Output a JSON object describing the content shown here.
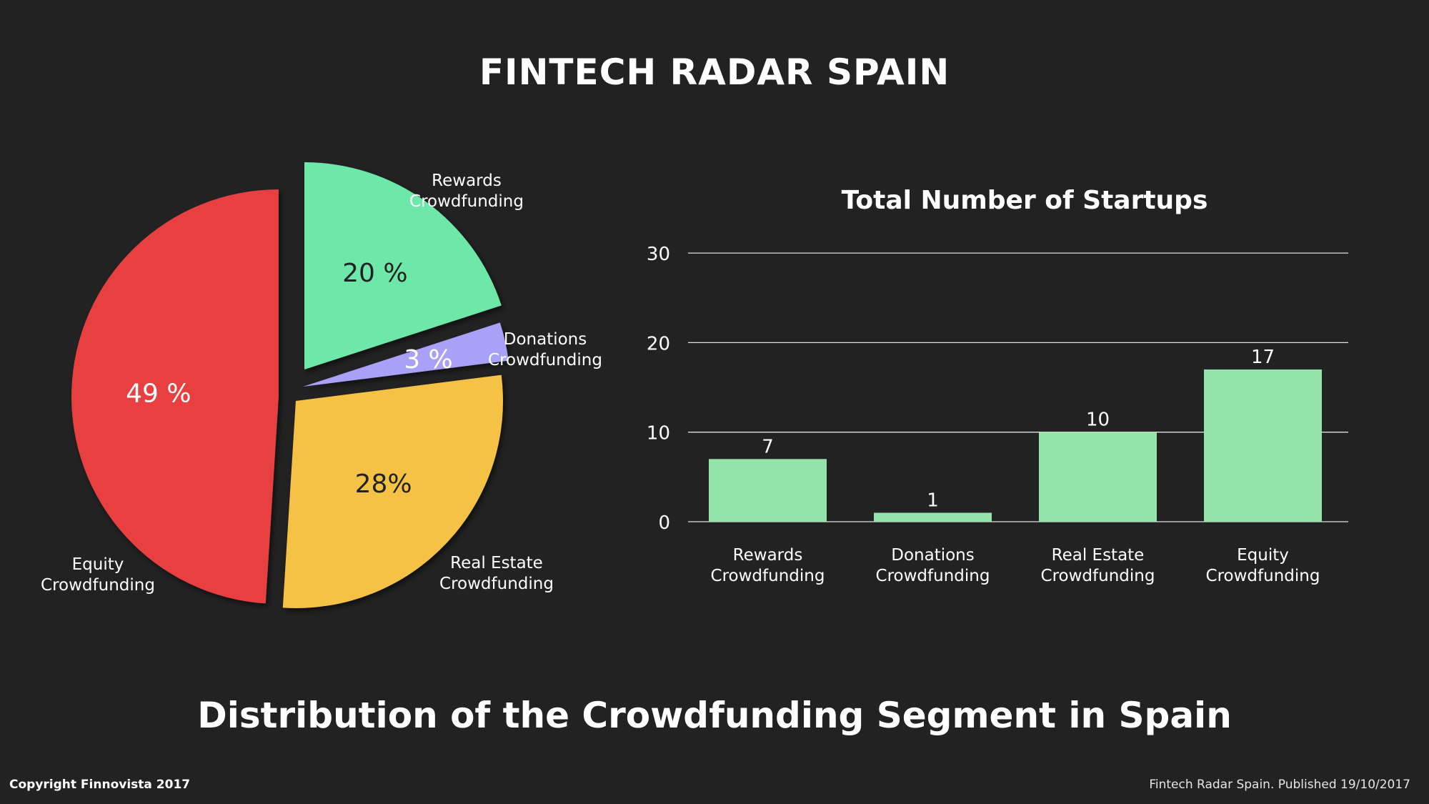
{
  "title": "FINTECH RADAR SPAIN",
  "subtitle": "Distribution of the Crowdfunding Segment in Spain",
  "footer": {
    "copyright": "Copyright Finnovista 2017",
    "published": "Fintech Radar Spain. Published 19/10/2017"
  },
  "chart_data": [
    {
      "type": "pie",
      "slices": [
        {
          "name": "Rewards Crowdfunding",
          "name_lines": [
            "Rewards",
            "Crowdfunding"
          ],
          "value": 20,
          "label": "20 %",
          "color": "#6ee8a8",
          "label_color": "#222222"
        },
        {
          "name": "Donations Crowdfunding",
          "name_lines": [
            "Donations",
            "Crowdfunding"
          ],
          "value": 3,
          "label": "3 %",
          "color": "#a9a1f7",
          "label_color": "#ffffff"
        },
        {
          "name": "Real Estate Crowdfunding",
          "name_lines": [
            "Real Estate",
            "Crowdfunding"
          ],
          "value": 28,
          "label": "28%",
          "color": "#f5c244",
          "label_color": "#222222"
        },
        {
          "name": "Equity Crowdfunding",
          "name_lines": [
            "Equity",
            "Crowdfunding"
          ],
          "value": 49,
          "label": "49 %",
          "color": "#e84040",
          "label_color": "#ffffff"
        }
      ]
    },
    {
      "type": "bar",
      "title": "Total Number of Startups",
      "categories": [
        [
          "Rewards",
          "Crowdfunding"
        ],
        [
          "Donations",
          "Crowdfunding"
        ],
        [
          "Real Estate",
          "Crowdfunding"
        ],
        [
          "Equity",
          "Crowdfunding"
        ]
      ],
      "values": [
        7,
        1,
        10,
        17
      ],
      "value_labels": [
        "7",
        "1",
        "10",
        "17"
      ],
      "ylim": [
        0,
        30
      ],
      "yticks": [
        "0",
        "10",
        "20",
        "30"
      ],
      "grid": true,
      "bar_color": "#93e3aa"
    }
  ]
}
